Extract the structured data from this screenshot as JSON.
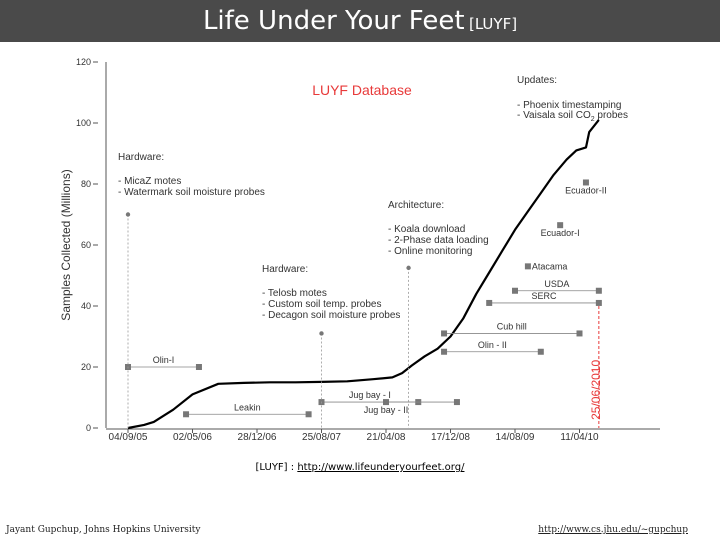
{
  "slide": {
    "title": "Life Under Your Feet",
    "title_tag": "[LUYF]",
    "reference_prefix": "[LUYF] : ",
    "reference_link": "http://www.lifeunderyourfeet.org/",
    "footer_author": "Jayant Gupchup, Johns Hopkins University",
    "footer_url": "http://www.cs.jhu.edu/~gupchup"
  },
  "colors": {
    "title_bg": "#4a4a4a",
    "title_text": "#ffffff",
    "accent_red": "#e83a3a",
    "curve": "#000000",
    "marker": "#777777"
  },
  "chart_data": {
    "type": "line",
    "title": "LUYF Database",
    "ylabel": "Samples Collected (Millions)",
    "xlabel": "",
    "ylim": [
      0,
      120
    ],
    "yticks": [
      0,
      20,
      40,
      60,
      80,
      100,
      120
    ],
    "xticks": [
      "04/09/05",
      "02/05/06",
      "28/12/06",
      "25/08/07",
      "21/04/08",
      "17/12/08",
      "14/08/09",
      "11/04/10"
    ],
    "series": [
      {
        "name": "Samples collected",
        "x": [
          0,
          0.25,
          0.4,
          0.7,
          1.0,
          1.4,
          1.8,
          2.2,
          2.6,
          3.0,
          3.4,
          3.8,
          4.1,
          4.25,
          4.4,
          4.6,
          4.8,
          5.0,
          5.2,
          5.4,
          5.6,
          5.8,
          6.0,
          6.2,
          6.4,
          6.6,
          6.8,
          6.95,
          7.1,
          7.15,
          7.3
        ],
        "values": [
          0,
          1,
          2,
          6,
          11,
          14.5,
          14.8,
          15,
          15,
          15.1,
          15.3,
          16,
          16.6,
          18,
          20.5,
          23.5,
          26,
          30,
          36,
          44,
          51,
          58,
          65,
          71,
          77,
          83,
          88,
          91,
          92,
          97,
          101
        ]
      }
    ],
    "events": [
      {
        "label": "Olin-I",
        "x0": 0,
        "x1": 1.1,
        "y": 20,
        "label_side": "mid"
      },
      {
        "label": "Leakin",
        "x0": 0.9,
        "x1": 2.8,
        "y": 4.5,
        "label_side": "mid"
      },
      {
        "label": "Jug bay - I",
        "x0": 3.0,
        "x1": 4.5,
        "y": 8.5,
        "label_side": "mid"
      },
      {
        "label": "Jug bay - II",
        "x0": 4.0,
        "x1": 5.1,
        "y": 8.5,
        "label_side": "below"
      },
      {
        "label": "Cub hill",
        "x0": 4.9,
        "x1": 7.0,
        "y": 31,
        "label_side": "mid"
      },
      {
        "label": "Olin - II",
        "x0": 4.9,
        "x1": 6.4,
        "y": 25,
        "label_side": "mid"
      },
      {
        "label": "SERC",
        "x0": 5.6,
        "x1": 7.3,
        "y": 41,
        "label_side": "mid"
      },
      {
        "label": "USDA",
        "x0": 6.0,
        "x1": 7.3,
        "y": 45,
        "label_side": "mid"
      },
      {
        "label": "Atacama",
        "x0": 6.2,
        "x1": 6.2,
        "y": 53,
        "label_side": "right"
      },
      {
        "label": "Ecuador-I",
        "x0": 6.7,
        "x1": 6.7,
        "y": 66.5,
        "label_side": "below"
      },
      {
        "label": "Ecuador-II",
        "x0": 7.1,
        "x1": 7.1,
        "y": 80.5,
        "label_side": "below"
      }
    ],
    "annotations": [
      {
        "heading": "Hardware:",
        "items": [
          "- MicaZ motes",
          "- Watermark soil moisture probes"
        ],
        "x": 0,
        "y": 70
      },
      {
        "heading": "Hardware:",
        "items": [
          "- Telosb motes",
          "- Custom soil temp. probes",
          "- Decagon soil moisture probes"
        ],
        "x": 3.0,
        "y": 31
      },
      {
        "heading": "Architecture:",
        "items": [
          "- Koala download",
          "- 2-Phase data loading",
          "- Online monitoring"
        ],
        "x": 4.35,
        "y": 52.5
      },
      {
        "heading": "Updates:",
        "items": [
          "- Phoenix timestamping",
          "- Vaisala soil CO",
          "2",
          " probes"
        ],
        "x": 7.3,
        "y": 120
      }
    ],
    "date_marker": "25/06/2010",
    "date_marker_x": 7.3
  }
}
